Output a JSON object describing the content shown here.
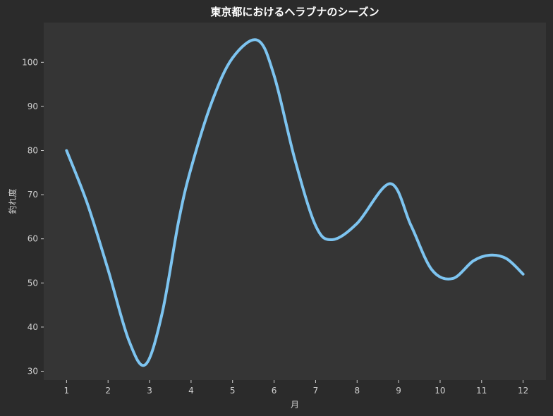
{
  "colors": {
    "figure_bg": "#2b2b2b",
    "axes_bg": "#353535",
    "line": "#7dc4f0",
    "text": "#e0e0e0",
    "tick": "#cfcfcf"
  },
  "chart_data": {
    "type": "line",
    "title": "東京都におけるヘラブナのシーズン",
    "xlabel": "月",
    "ylabel": "釣れ度",
    "x": [
      1,
      2,
      3,
      4,
      5,
      6,
      7,
      8,
      9,
      10,
      11,
      12
    ],
    "xticks": [
      1,
      2,
      3,
      4,
      5,
      6,
      7,
      8,
      9,
      10,
      11,
      12
    ],
    "yticks": [
      30,
      40,
      50,
      60,
      70,
      80,
      90,
      100
    ],
    "xlim": [
      0.45,
      12.55
    ],
    "ylim": [
      28,
      109
    ],
    "grid": false,
    "legend": "none",
    "smooth": true,
    "series": [
      {
        "points": [
          [
            1,
            80
          ],
          [
            1.5,
            68
          ],
          [
            2,
            53
          ],
          [
            2.5,
            37
          ],
          [
            2.9,
            31.5
          ],
          [
            3.3,
            43
          ],
          [
            3.7,
            64
          ],
          [
            4,
            76
          ],
          [
            4.5,
            91
          ],
          [
            5,
            101
          ],
          [
            5.6,
            105
          ],
          [
            6,
            97
          ],
          [
            6.5,
            78
          ],
          [
            7,
            63
          ],
          [
            7.4,
            59.8
          ],
          [
            8,
            63.5
          ],
          [
            8.8,
            72.5
          ],
          [
            9.3,
            63
          ],
          [
            9.8,
            53
          ],
          [
            10.3,
            51
          ],
          [
            10.8,
            55
          ],
          [
            11.2,
            56.3
          ],
          [
            11.6,
            55.5
          ],
          [
            12,
            52
          ]
        ]
      }
    ]
  }
}
